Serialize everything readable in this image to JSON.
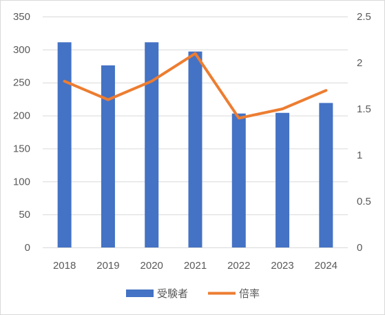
{
  "chart_data": {
    "type": "bar+line",
    "categories": [
      "2018",
      "2019",
      "2020",
      "2021",
      "2022",
      "2023",
      "2024"
    ],
    "series": [
      {
        "name": "受験者",
        "type": "bar",
        "axis": "left",
        "color": "#4472c4",
        "values": [
          311,
          276,
          311,
          297,
          203,
          204,
          219
        ]
      },
      {
        "name": "倍率",
        "type": "line",
        "axis": "right",
        "color": "#ed7d31",
        "values": [
          1.8,
          1.6,
          1.8,
          2.1,
          1.4,
          1.5,
          1.7
        ]
      }
    ],
    "y_left": {
      "min": 0,
      "max": 350,
      "step": 50,
      "ticks": [
        "0",
        "50",
        "100",
        "150",
        "200",
        "250",
        "300",
        "350"
      ]
    },
    "y_right": {
      "min": 0,
      "max": 2.5,
      "step": 0.5,
      "ticks": [
        "0",
        "0.5",
        "1",
        "1.5",
        "2",
        "2.5"
      ]
    },
    "grid": true,
    "legend_position": "bottom"
  }
}
